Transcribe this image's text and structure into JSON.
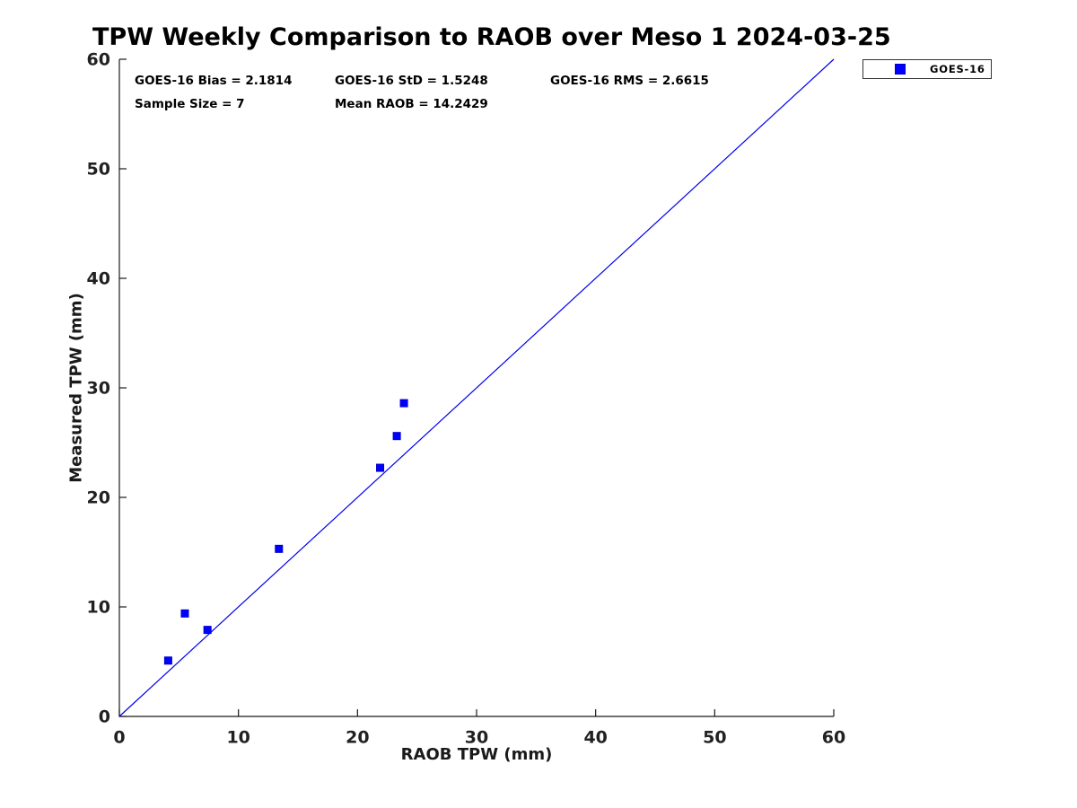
{
  "page": {
    "background": "#ffffff"
  },
  "chart_data": {
    "type": "scatter",
    "title": "TPW Weekly Comparison to RAOB over Meso 1 2024-03-25",
    "xlabel": "RAOB TPW (mm)",
    "ylabel": "Measured TPW (mm)",
    "xlim": [
      0,
      60
    ],
    "ylim": [
      0,
      60
    ],
    "xticks": [
      0,
      10,
      20,
      30,
      40,
      50,
      60
    ],
    "yticks": [
      0,
      10,
      20,
      30,
      40,
      50,
      60
    ],
    "grid": false,
    "axis_color": "#1a1a1a",
    "tick_label_color": "#212121",
    "series": [
      {
        "name": "GOES-16",
        "marker": "square",
        "marker_color": "#0000ff",
        "marker_edge_color": "#0000cc",
        "marker_size": 8,
        "points": [
          [
            4.1,
            5.1
          ],
          [
            5.5,
            9.4
          ],
          [
            7.4,
            7.9
          ],
          [
            13.4,
            15.3
          ],
          [
            21.9,
            22.7
          ],
          [
            23.3,
            25.6
          ],
          [
            23.9,
            28.6
          ]
        ]
      }
    ],
    "reference_line": {
      "type": "identity",
      "from": [
        0,
        0
      ],
      "to": [
        60,
        60
      ],
      "color": "#0000ee"
    },
    "legend": {
      "position": "outside-top-right",
      "entries": [
        {
          "label": "GOES-16",
          "marker": "square",
          "color": "#0000ff"
        }
      ]
    }
  },
  "stats": {
    "bias": "GOES-16 Bias = 2.1814",
    "std": "GOES-16 StD = 1.5248",
    "rms": "GOES-16 RMS = 2.6615",
    "sample_size": "Sample Size = 7",
    "mean_raob": "Mean RAOB = 14.2429"
  }
}
